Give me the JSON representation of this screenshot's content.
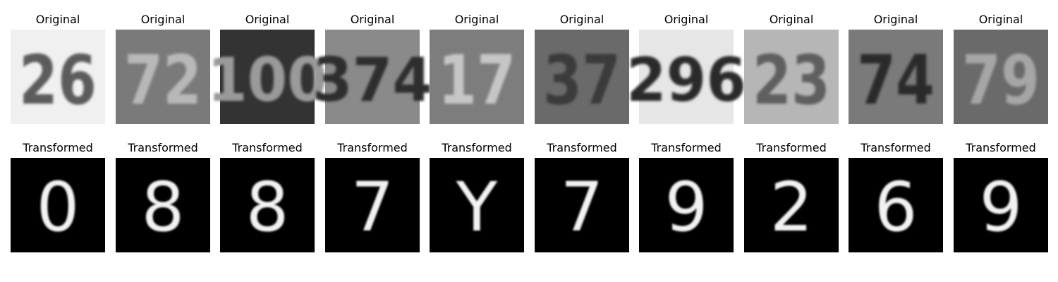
{
  "rows": [
    {
      "label": "Original",
      "tiles": [
        {
          "digits": "26",
          "bg": "#f0f0f0",
          "fg": "#5c5c5c"
        },
        {
          "digits": "72",
          "bg": "#7a7a7a",
          "fg": "#b8b8b8"
        },
        {
          "digits": "100",
          "bg": "#333333",
          "fg": "#9a9a9a"
        },
        {
          "digits": "374",
          "bg": "#8a8a8a",
          "fg": "#2e2e2e"
        },
        {
          "digits": "17",
          "bg": "#7d7d7d",
          "fg": "#c6c6c6"
        },
        {
          "digits": "37",
          "bg": "#6a6a6a",
          "fg": "#3a3a3a"
        },
        {
          "digits": "296",
          "bg": "#e6e6e6",
          "fg": "#2a2a2a"
        },
        {
          "digits": "23",
          "bg": "#b6b6b6",
          "fg": "#5e5e5e"
        },
        {
          "digits": "74",
          "bg": "#7a7a7a",
          "fg": "#2c2c2c"
        },
        {
          "digits": "79",
          "bg": "#6a6a6a",
          "fg": "#a6a6a6"
        }
      ]
    },
    {
      "label": "Transformed",
      "tiles": [
        {
          "digit": "0"
        },
        {
          "digit": "8"
        },
        {
          "digit": "8"
        },
        {
          "digit": "7"
        },
        {
          "digit": "Y"
        },
        {
          "digit": "7"
        },
        {
          "digit": "9"
        },
        {
          "digit": "2"
        },
        {
          "digit": "6"
        },
        {
          "digit": "9"
        }
      ]
    }
  ]
}
